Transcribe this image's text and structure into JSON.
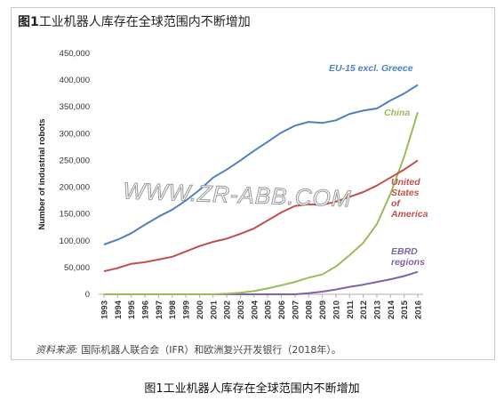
{
  "figure": {
    "title_prefix": "图1",
    "title_text": "工业机器人库存在全球范围内不断增加",
    "source_label": "资料来源:",
    "source_text": " 国际机器人联合会（IFR）和欧洲复兴开发银行（2018年）。",
    "caption": "图1工业机器人库存在全球范围内不断增加",
    "watermark": "WWW.ZR-ABB.COM"
  },
  "chart_data": {
    "type": "line",
    "title": "工业机器人库存在全球范围内不断增加",
    "xlabel": "",
    "ylabel": "Number of industrial robots",
    "x": [
      1993,
      1994,
      1995,
      1996,
      1997,
      1998,
      1999,
      2000,
      2001,
      2002,
      2003,
      2004,
      2005,
      2006,
      2007,
      2008,
      2009,
      2010,
      2011,
      2012,
      2013,
      2014,
      2015,
      2016
    ],
    "ylim": [
      0,
      450000
    ],
    "yticks": [
      0,
      50000,
      100000,
      150000,
      200000,
      250000,
      300000,
      350000,
      400000,
      450000
    ],
    "ytick_labels": [
      "0",
      "50,000",
      "100,000",
      "150,000",
      "200,000",
      "250,000",
      "300,000",
      "350,000",
      "400,000",
      "450,000"
    ],
    "grid": false,
    "legend": "inline labels",
    "series": [
      {
        "name": "EU-15 excl. Greece",
        "color": "#4f81bd",
        "values": [
          93000,
          102000,
          114000,
          130000,
          145000,
          158000,
          175000,
          195000,
          218000,
          233000,
          250000,
          268000,
          285000,
          302000,
          315000,
          322000,
          320000,
          325000,
          337000,
          343000,
          347000,
          362000,
          375000,
          391000
        ]
      },
      {
        "name": "China",
        "color": "#9bbb59",
        "values": [
          0,
          0,
          0,
          0,
          0,
          0,
          0,
          0,
          0,
          1000,
          3000,
          6000,
          11000,
          17000,
          23000,
          31000,
          37000,
          52000,
          73000,
          96000,
          131000,
          188000,
          257000,
          340000
        ]
      },
      {
        "name": "United States of America",
        "label_lines": [
          "United",
          "States",
          "of",
          "America"
        ],
        "color": "#c0504d",
        "values": [
          43000,
          49000,
          57000,
          60000,
          65000,
          70000,
          80000,
          90000,
          98000,
          104000,
          113000,
          123000,
          138000,
          153000,
          165000,
          168000,
          167000,
          173000,
          182000,
          191000,
          203000,
          218000,
          233000,
          250000
        ]
      },
      {
        "name": "EBRD regions",
        "label_lines": [
          "EBRD",
          "regions"
        ],
        "color": "#8064a2",
        "values": [
          0,
          0,
          0,
          0,
          0,
          0,
          0,
          0,
          0,
          0,
          0,
          0,
          0,
          0,
          0,
          2000,
          5000,
          9000,
          14000,
          18000,
          23000,
          28000,
          34000,
          42000
        ]
      }
    ]
  }
}
